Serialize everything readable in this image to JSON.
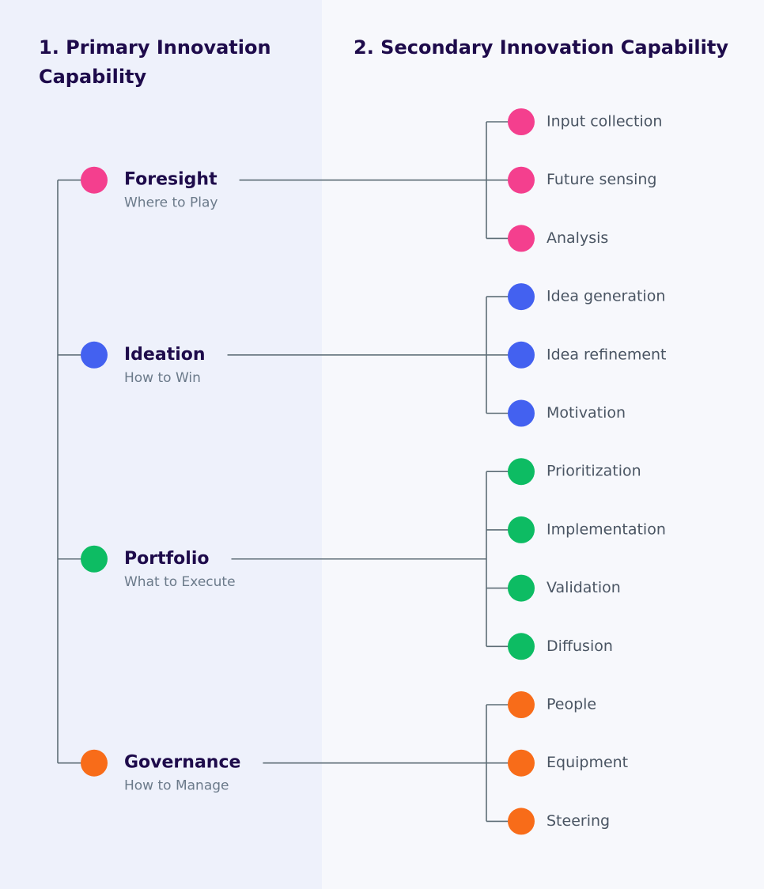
{
  "header": {
    "left_title": "1. Primary Innovation Capability",
    "right_title": "2. Secondary Innovation Capability"
  },
  "nodes": [
    {
      "label": "Foresight",
      "subtitle": "Where to Play",
      "color": "#f43f8e",
      "children": [
        "Input collection",
        "Future sensing",
        "Analysis"
      ]
    },
    {
      "label": "Ideation",
      "subtitle": "How to Win",
      "color": "#4361f0",
      "children": [
        "Idea generation",
        "Idea refinement",
        "Motivation"
      ]
    },
    {
      "label": "Portfolio",
      "subtitle": "What to Execute",
      "color": "#0dbc63",
      "children": [
        "Prioritization",
        "Implementation",
        "Validation",
        "Diffusion"
      ]
    },
    {
      "label": "Governance",
      "subtitle": "How to Manage",
      "color": "#f86c19",
      "children": [
        "People",
        "Equipment",
        "Steering"
      ]
    }
  ]
}
